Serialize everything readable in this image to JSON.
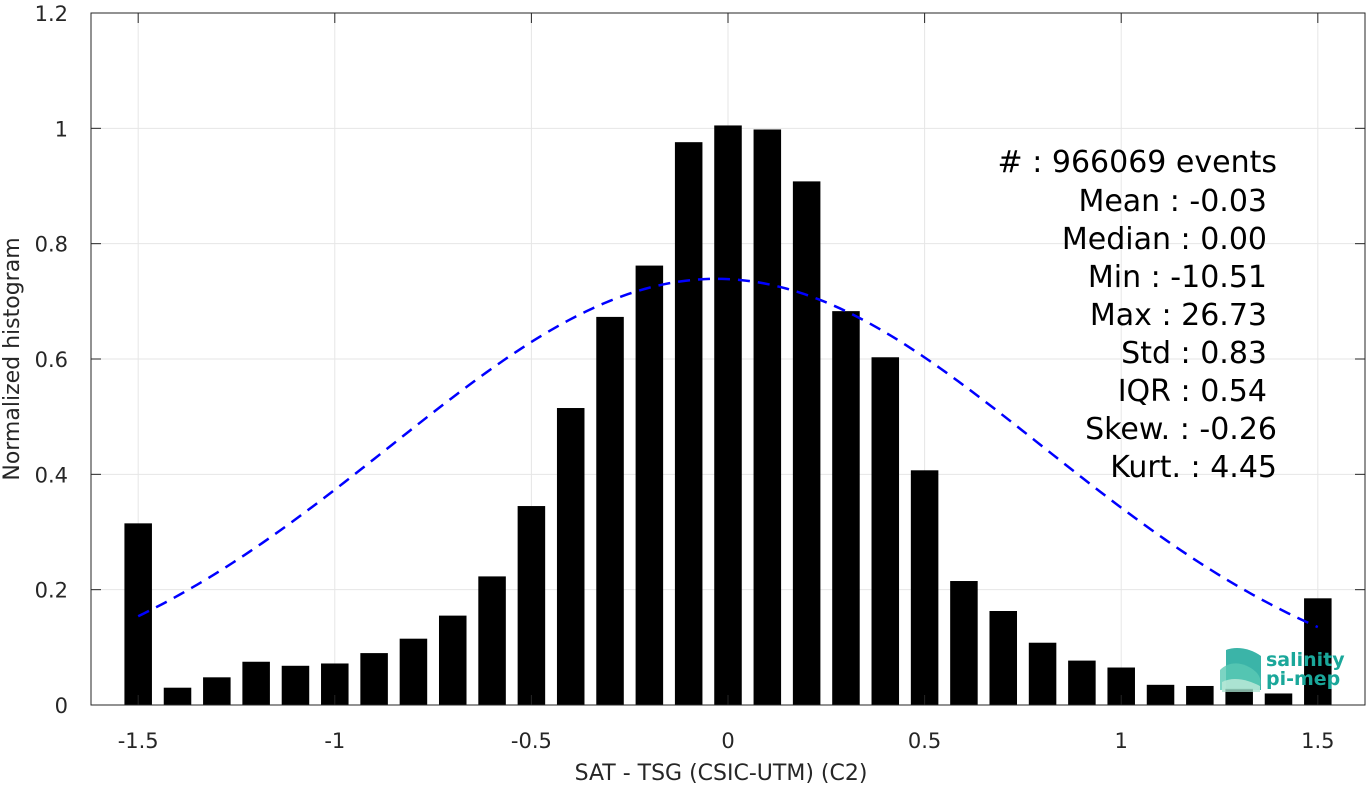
{
  "chart_data": {
    "type": "bar",
    "xlabel": "SAT - TSG (CSIC-UTM) (C2)",
    "ylabel": "Normalized histogram",
    "xlim": [
      -1.62,
      1.62
    ],
    "ylim": [
      0,
      1.2
    ],
    "xticks": [
      -1.5,
      -1,
      -0.5,
      0,
      0.5,
      1,
      1.5
    ],
    "xtick_labels": [
      "-1.5",
      "-1",
      "-0.5",
      "0",
      "0.5",
      "1",
      "1.5"
    ],
    "yticks": [
      0,
      0.2,
      0.4,
      0.6,
      0.8,
      1,
      1.2
    ],
    "ytick_labels": [
      "0",
      "0.2",
      "0.4",
      "0.6",
      "0.8",
      "1",
      "1.2"
    ],
    "grid": true,
    "bar_width": 0.07,
    "bar_color": "#000000",
    "bins": [
      -1.5,
      -1.4,
      -1.3,
      -1.2,
      -1.1,
      -1.0,
      -0.9,
      -0.8,
      -0.7,
      -0.6,
      -0.5,
      -0.4,
      -0.3,
      -0.2,
      -0.1,
      0.0,
      0.1,
      0.2,
      0.3,
      0.4,
      0.5,
      0.6,
      0.7,
      0.8,
      0.9,
      1.0,
      1.1,
      1.2,
      1.3,
      1.4,
      1.5
    ],
    "values": [
      0.315,
      0.03,
      0.048,
      0.075,
      0.068,
      0.072,
      0.09,
      0.115,
      0.155,
      0.223,
      0.345,
      0.515,
      0.673,
      0.762,
      0.976,
      1.005,
      0.998,
      0.908,
      0.683,
      0.603,
      0.407,
      0.215,
      0.163,
      0.108,
      0.077,
      0.065,
      0.035,
      0.033,
      0.028,
      0.02,
      0.185
    ],
    "fit": {
      "kind": "gaussian",
      "mean": -0.03,
      "std": 0.83,
      "peak": 0.739,
      "x_range": [
        -1.5,
        1.5
      ],
      "color": "#0000ff",
      "style": "dashed"
    },
    "stats": [
      "#  : 966069 events",
      "Mean : -0.03",
      "Median : 0.00",
      "Min : -10.51",
      "Max : 26.73",
      "Std : 0.83",
      "IQR : 0.54",
      "Skew. : -0.26",
      "Kurt. : 4.45"
    ],
    "logo": {
      "line1": "salinity",
      "line2": "pi-mep",
      "color": "#1aa79a"
    }
  }
}
